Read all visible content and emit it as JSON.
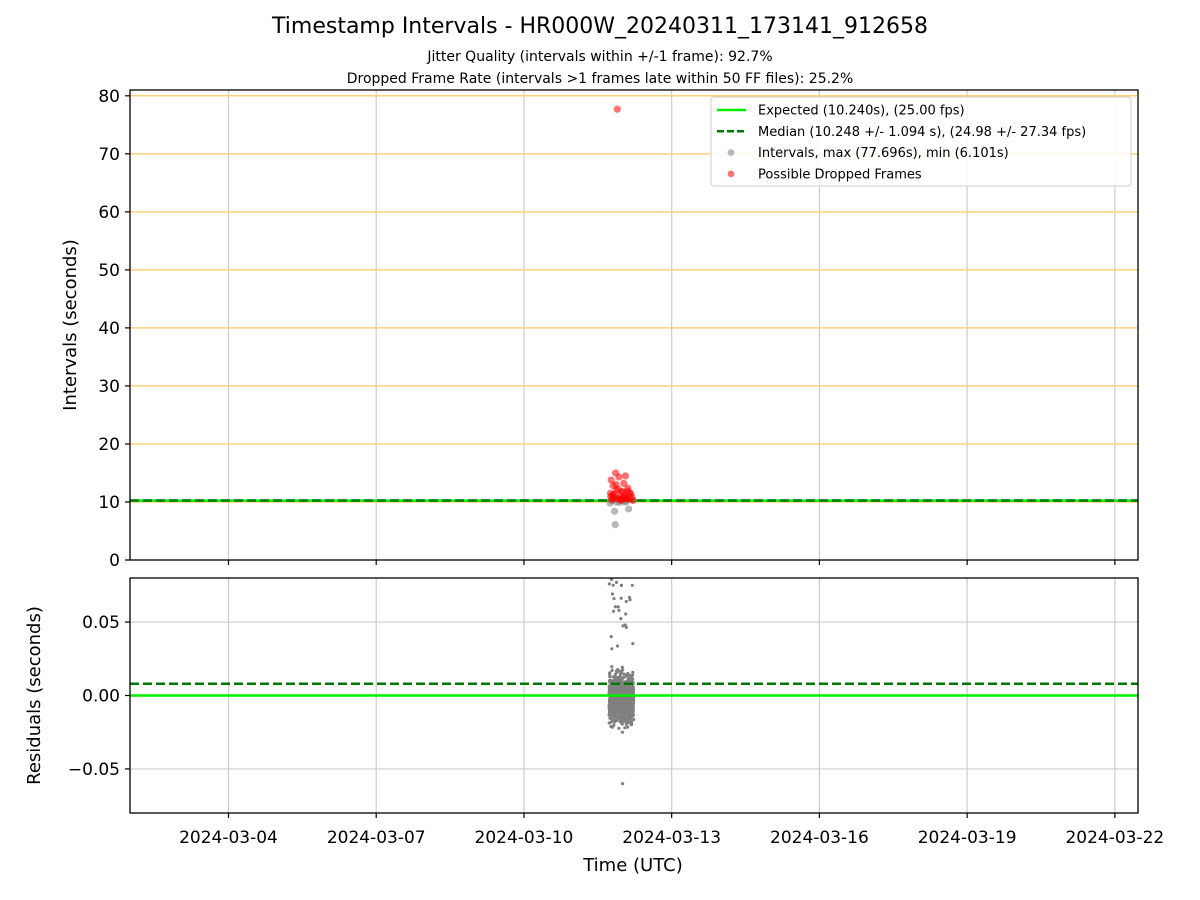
{
  "header": {
    "title": "Timestamp Intervals - HR000W_20240311_173141_912658",
    "subtitle1": "Jitter Quality (intervals within +/-1 frame): 92.7%",
    "subtitle2": "Dropped Frame Rate (intervals >1 frames late within 50 FF files): 25.2%"
  },
  "colors": {
    "expected": "#00ee00",
    "median": "#007700",
    "intervals": "#808080",
    "dropped": "#ff0000",
    "hlines": "#ffd27a",
    "grid": "#cccccc"
  },
  "chart_data": [
    {
      "type": "scatter",
      "title": "Timestamp Intervals - HR000W_20240311_173141_912658",
      "xlabel": "",
      "ylabel": "Intervals (seconds)",
      "xlim": [
        "2024-03-02",
        "2024-03-22"
      ],
      "ylim": [
        0,
        81
      ],
      "yticks": [
        0,
        10,
        20,
        30,
        40,
        50,
        60,
        70,
        80
      ],
      "xticks": [
        "2024-03-04",
        "2024-03-07",
        "2024-03-10",
        "2024-03-13",
        "2024-03-16",
        "2024-03-19",
        "2024-03-22"
      ],
      "hlines": [
        10,
        20,
        30,
        40,
        50,
        60,
        70,
        80
      ],
      "grid": true,
      "legend_position": "top-right",
      "expected": 10.24,
      "median": 10.248,
      "series": [
        {
          "name": "Expected (10.240s), (25.00 fps)",
          "kind": "hline",
          "value": 10.24
        },
        {
          "name": "Median (10.248 +/- 1.094 s), (24.98 +/- 27.34 fps)",
          "kind": "hline-dashed",
          "value": 10.248
        },
        {
          "name": "Intervals, max (77.696s), min (6.101s)",
          "kind": "scatter",
          "points": [
            [
              "2024-03-11T20:30",
              6.101
            ],
            [
              "2024-03-11T20:10",
              8.4
            ],
            [
              "2024-03-12T03:00",
              8.8
            ],
            [
              "2024-03-11T18:00",
              9.8
            ],
            [
              "2024-03-11T21:00",
              10.0
            ],
            [
              "2024-03-12T00:00",
              10.2
            ],
            [
              "2024-03-12T02:00",
              10.1
            ],
            [
              "2024-03-11T22:30",
              9.9
            ],
            [
              "2024-03-12T05:00",
              10.3
            ],
            [
              "2024-03-11T19:00",
              10.24
            ],
            [
              "2024-03-12T01:00",
              10.0
            ],
            [
              "2024-03-11T23:00",
              10.5
            ]
          ]
        },
        {
          "name": "Possible Dropped Frames",
          "kind": "scatter",
          "points": [
            [
              "2024-03-11T21:30",
              77.696
            ],
            [
              "2024-03-11T20:40",
              15.0
            ],
            [
              "2024-03-12T01:30",
              14.5
            ],
            [
              "2024-03-11T18:30",
              13.8
            ],
            [
              "2024-03-12T00:40",
              13.2
            ],
            [
              "2024-03-11T22:20",
              14.3
            ],
            [
              "2024-03-11T19:30",
              12.8
            ],
            [
              "2024-03-12T02:40",
              12.4
            ],
            [
              "2024-03-11T21:10",
              12.0
            ],
            [
              "2024-03-11T23:40",
              11.8
            ],
            [
              "2024-03-12T03:30",
              11.6
            ],
            [
              "2024-03-11T18:10",
              11.5
            ],
            [
              "2024-03-11T20:00",
              11.3
            ],
            [
              "2024-03-12T01:10",
              11.1
            ],
            [
              "2024-03-11T22:50",
              11.0
            ],
            [
              "2024-03-12T04:30",
              10.9
            ],
            [
              "2024-03-11T19:50",
              10.8
            ],
            [
              "2024-03-12T00:10",
              10.7
            ],
            [
              "2024-03-11T21:50",
              10.6
            ],
            [
              "2024-03-12T02:10",
              10.5
            ],
            [
              "2024-03-11T18:40",
              10.4
            ],
            [
              "2024-03-12T05:10",
              10.3
            ],
            [
              "2024-03-11T23:20",
              10.4
            ],
            [
              "2024-03-11T20:20",
              10.6
            ],
            [
              "2024-03-12T01:50",
              10.8
            ],
            [
              "2024-03-11T19:10",
              11.2
            ],
            [
              "2024-03-12T03:10",
              10.5
            ],
            [
              "2024-03-11T22:00",
              12.2
            ],
            [
              "2024-03-12T00:20",
              11.7
            ],
            [
              "2024-03-11T20:50",
              13.0
            ],
            [
              "2024-03-12T02:30",
              11.9
            ],
            [
              "2024-03-11T18:20",
              10.9
            ],
            [
              "2024-03-12T04:00",
              11.4
            ],
            [
              "2024-03-11T23:10",
              10.3
            ],
            [
              "2024-03-12T01:20",
              10.6
            ]
          ]
        }
      ]
    },
    {
      "type": "scatter",
      "xlabel": "Time (UTC)",
      "ylabel": "Residuals (seconds)",
      "xlim": [
        "2024-03-02",
        "2024-03-22"
      ],
      "ylim": [
        -0.08,
        0.08
      ],
      "yticks": [
        -0.05,
        0.0,
        0.05
      ],
      "ytick_labels": [
        "−0.05",
        "0.00",
        "0.05"
      ],
      "xticks": [
        "2024-03-04",
        "2024-03-07",
        "2024-03-10",
        "2024-03-13",
        "2024-03-16",
        "2024-03-19",
        "2024-03-22"
      ],
      "grid": true,
      "expected_residual": 0.0,
      "median_residual": 0.008,
      "residual_cluster": {
        "time_start": "2024-03-11T17:30",
        "time_end": "2024-03-12T05:30",
        "core_range": [
          -0.03,
          0.025
        ],
        "outliers_range": [
          -0.06,
          0.08
        ]
      }
    }
  ]
}
